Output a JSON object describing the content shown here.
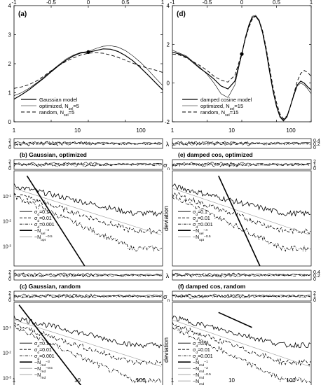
{
  "chart_data": [
    {
      "id": "a",
      "type": "line",
      "panel_label": "(a)",
      "xlim": [
        -1,
        1
      ],
      "ylim": [
        0,
        4
      ],
      "xticks": [
        -1,
        -0.5,
        0,
        0.5,
        1
      ],
      "yticks": [
        0,
        1,
        2,
        3,
        4
      ],
      "series": [
        {
          "name": "Gaussian model",
          "style": "solid",
          "width": 1.2,
          "x": [
            -1,
            -0.9,
            -0.8,
            -0.7,
            -0.6,
            -0.5,
            -0.4,
            -0.3,
            -0.2,
            -0.1,
            0,
            0.1,
            0.2,
            0.3,
            0.4,
            0.5,
            0.6,
            0.7,
            0.8,
            0.9,
            1
          ],
          "y": [
            0.78,
            0.93,
            1.1,
            1.3,
            1.5,
            1.72,
            1.93,
            2.12,
            2.27,
            2.37,
            2.4,
            2.45,
            2.51,
            2.5,
            2.42,
            2.28,
            2.1,
            1.87,
            1.62,
            1.36,
            1.1
          ]
        },
        {
          "name": "optimized, N_sel=5",
          "style": "solid",
          "width": 0.6,
          "x": [
            -1,
            -0.9,
            -0.8,
            -0.7,
            -0.6,
            -0.5,
            -0.4,
            -0.3,
            -0.2,
            -0.1,
            0,
            0.1,
            0.2,
            0.3,
            0.4,
            0.5,
            0.6,
            0.7,
            0.8,
            0.9,
            1
          ],
          "y": [
            0.9,
            1.0,
            1.15,
            1.33,
            1.53,
            1.75,
            1.96,
            2.16,
            2.3,
            2.39,
            2.42,
            2.52,
            2.6,
            2.62,
            2.57,
            2.45,
            2.27,
            2.05,
            1.8,
            1.52,
            1.25
          ]
        },
        {
          "name": "random, N_sel=5",
          "style": "dashed",
          "width": 0.9,
          "x": [
            -1,
            -0.9,
            -0.8,
            -0.7,
            -0.6,
            -0.5,
            -0.4,
            -0.3,
            -0.2,
            -0.1,
            0,
            0.1,
            0.2,
            0.3,
            0.4,
            0.5,
            0.6,
            0.7,
            0.8,
            0.9,
            1
          ],
          "y": [
            1.15,
            1.2,
            1.28,
            1.4,
            1.57,
            1.76,
            1.93,
            2.08,
            2.2,
            2.3,
            2.36,
            2.38,
            2.36,
            2.3,
            2.22,
            2.12,
            2.02,
            1.92,
            1.85,
            1.78,
            1.7
          ]
        }
      ],
      "marker": {
        "x": 0,
        "y": 2.4
      },
      "legend": {
        "position": "bottom-right",
        "entries": [
          {
            "main": "Gaussian model",
            "sub": "",
            "tail": ""
          },
          {
            "main": "optimized, N",
            "sub": "sel",
            "tail": "=5"
          },
          {
            "main": "random, N",
            "sub": "sel",
            "tail": "=5"
          }
        ]
      }
    },
    {
      "id": "d",
      "type": "line",
      "panel_label": "(d)",
      "xlim": [
        -1,
        1
      ],
      "ylim": [
        -2,
        4
      ],
      "xticks": [
        -1,
        -0.5,
        0,
        0.5,
        1
      ],
      "yticks": [
        -2,
        0,
        2,
        4
      ],
      "series": [
        {
          "name": "damped cosine model",
          "style": "solid",
          "width": 1.2,
          "x": [
            -1,
            -0.9,
            -0.8,
            -0.7,
            -0.6,
            -0.5,
            -0.4,
            -0.3,
            -0.2,
            -0.1,
            0,
            0.05,
            0.1,
            0.15,
            0.2,
            0.25,
            0.3,
            0.35,
            0.4,
            0.45,
            0.5,
            0.55,
            0.6,
            0.65,
            0.7,
            0.75,
            0.8,
            0.85,
            0.9,
            0.95,
            1
          ],
          "y": [
            1.6,
            1.5,
            1.35,
            1.05,
            0.75,
            0.5,
            0.2,
            -0.15,
            -0.3,
            0.1,
            1.5,
            2.3,
            2.95,
            3.4,
            3.45,
            3.2,
            2.6,
            1.7,
            0.6,
            -0.4,
            -1.2,
            -1.75,
            -1.95,
            -1.75,
            -1.2,
            -0.6,
            -0.1,
            0.1,
            0.0,
            -0.2,
            -0.35
          ]
        },
        {
          "name": "optimized, N_sel=15",
          "style": "solid",
          "width": 0.6,
          "x": [
            -1,
            -0.9,
            -0.8,
            -0.7,
            -0.6,
            -0.5,
            -0.4,
            -0.3,
            -0.2,
            -0.1,
            0,
            0.05,
            0.1,
            0.15,
            0.2,
            0.25,
            0.3,
            0.35,
            0.4,
            0.45,
            0.5,
            0.55,
            0.6,
            0.65,
            0.7,
            0.75,
            0.8,
            0.85,
            0.9,
            0.95,
            1
          ],
          "y": [
            1.7,
            1.55,
            1.4,
            1.1,
            0.8,
            0.45,
            0.0,
            -0.55,
            -0.75,
            -0.1,
            1.5,
            2.35,
            3.0,
            3.45,
            3.5,
            3.25,
            2.65,
            1.75,
            0.65,
            -0.35,
            -1.15,
            -1.7,
            -1.9,
            -1.7,
            -1.2,
            -0.65,
            -0.15,
            0.0,
            -0.1,
            -0.3,
            -0.55
          ]
        },
        {
          "name": "random, N_sel=15",
          "style": "dashed",
          "width": 0.9,
          "x": [
            -1,
            -0.9,
            -0.8,
            -0.7,
            -0.6,
            -0.5,
            -0.4,
            -0.3,
            -0.2,
            -0.1,
            0,
            0.05,
            0.1,
            0.15,
            0.2,
            0.25,
            0.3,
            0.35,
            0.4,
            0.45,
            0.5,
            0.55,
            0.6,
            0.65,
            0.7,
            0.75,
            0.8,
            0.85,
            0.9,
            0.95,
            1
          ],
          "y": [
            1.5,
            1.45,
            1.3,
            1.1,
            0.9,
            0.65,
            0.35,
            0.15,
            0.05,
            0.4,
            1.55,
            2.25,
            2.85,
            3.3,
            3.45,
            3.25,
            2.7,
            1.85,
            0.8,
            -0.2,
            -1.0,
            -1.6,
            -1.85,
            -1.7,
            -1.2,
            -0.55,
            0.1,
            0.5,
            0.65,
            0.55,
            0.35
          ]
        }
      ],
      "marker": {
        "x": 0,
        "y": 1.5
      },
      "legend": {
        "position": "bottom-right",
        "entries": [
          {
            "main": "damped cosine model",
            "sub": "",
            "tail": ""
          },
          {
            "main": "optimized, N",
            "sub": "sel",
            "tail": "=15"
          },
          {
            "main": "random, N",
            "sub": "sel",
            "tail": "=15"
          }
        ]
      }
    }
  ],
  "panels_top_axis": {
    "ticks": [
      "-1",
      "-0.5",
      "0",
      "0.5",
      "1"
    ]
  },
  "lower": {
    "x_tick_labels": [
      "1",
      "10",
      "100"
    ],
    "y_label_deviation": "deviation",
    "lambda_label": "λ",
    "sigma_label": "σ",
    "sigma_sub": "n",
    "sigma_ticks_left": [
      "2",
      "1",
      "0"
    ],
    "lambda_ticks_left": [
      "2",
      "1",
      "0"
    ],
    "lambda_ticks_right": [
      "0.4",
      "0.2",
      "0"
    ],
    "sigma_ticks_right": [
      "2",
      "1",
      "0"
    ],
    "dev_ticks": [
      "10",
      "10",
      "10"
    ],
    "dev_exps": [
      "-1",
      "-2",
      "-3"
    ],
    "panels": [
      {
        "id": "b",
        "title": "(b)   Gaussian, optimized"
      },
      {
        "id": "e",
        "title": "(e)   damped cos, optimized"
      },
      {
        "id": "c",
        "title": "(c)   Gaussian, random"
      },
      {
        "id": "f",
        "title": "(f)   damped cos, random"
      }
    ],
    "legend_opt_left": [
      {
        "pre": "σ",
        "sub": "d",
        "post": "=0.1",
        "sup": ""
      },
      {
        "pre": "σ",
        "sub": "d",
        "post": "=0.01",
        "sup": ""
      },
      {
        "pre": "σ",
        "sub": "d",
        "post": "=0.001",
        "sup": ""
      },
      {
        "pre": "~N",
        "sub": "sel",
        "post": "",
        "sup": "−4"
      },
      {
        "pre": "~N",
        "sub": "opt",
        "post": "",
        "sup": "−0.5"
      }
    ],
    "legend_opt_right": [
      {
        "pre": "σ",
        "sub": "d",
        "post": "=0.1",
        "sup": ""
      },
      {
        "pre": "σ",
        "sub": "d",
        "post": "=0.01",
        "sup": ""
      },
      {
        "pre": "σ",
        "sub": "d",
        "post": "=0.001",
        "sup": ""
      },
      {
        "pre": "~N",
        "sub": "sel",
        "post": "",
        "sup": "−4"
      },
      {
        "pre": "~N",
        "sub": "opt",
        "post": "",
        "sup": "−0.5"
      }
    ],
    "legend_rand_left": [
      {
        "pre": "σ",
        "sub": "d",
        "post": "=0.1",
        "sup": ""
      },
      {
        "pre": "σ",
        "sub": "d",
        "post": "=0.01",
        "sup": ""
      },
      {
        "pre": "σ",
        "sub": "d",
        "post": "=0.001",
        "sup": ""
      },
      {
        "pre": "~N",
        "sub": "rnd",
        "post": "",
        "sup": "−3"
      },
      {
        "pre": "~N",
        "sub": "rnd",
        "post": "",
        "sup": "−0.5"
      },
      {
        "pre": "~N",
        "sub": "rnd",
        "post": "",
        "sup": ""
      }
    ],
    "legend_rand_right": [
      {
        "pre": "σ",
        "sub": "d",
        "post": "=0.1",
        "sup": ""
      },
      {
        "pre": "σ",
        "sub": "d",
        "post": "=0.01",
        "sup": ""
      },
      {
        "pre": "σ",
        "sub": "d",
        "post": "=0.001",
        "sup": ""
      },
      {
        "pre": "~N",
        "sub": "rnd",
        "post": "",
        "sup": "−1"
      },
      {
        "pre": "~N",
        "sub": "rnd",
        "post": "",
        "sup": "−2"
      },
      {
        "pre": "~N",
        "sub": "rnd",
        "post": "",
        "sup": "−0.5"
      },
      {
        "pre": "~N",
        "sub": "rnd",
        "post": "",
        "sup": ""
      }
    ]
  }
}
